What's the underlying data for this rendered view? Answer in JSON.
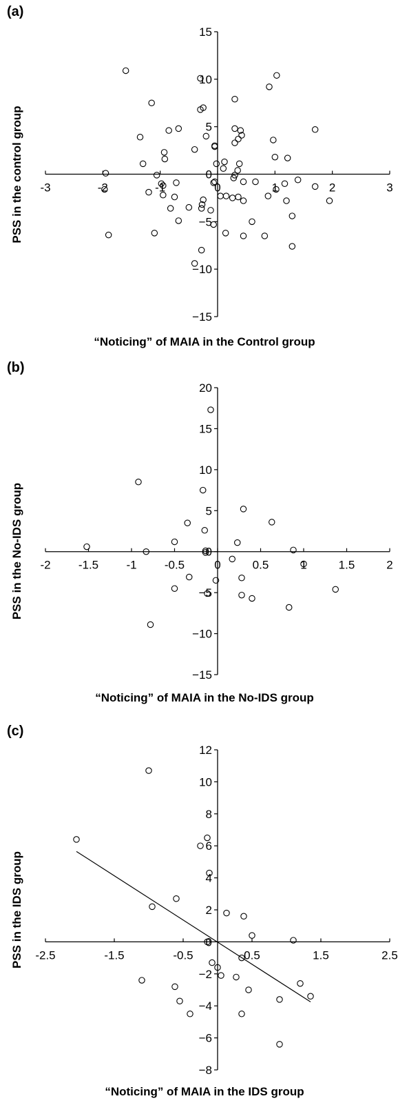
{
  "chart_data": [
    {
      "panel": "(a)",
      "type": "scatter",
      "xlabel": "“Noticing” of MAIA in the Control group",
      "ylabel": "PSS in the control group",
      "xlim": [
        -3,
        3
      ],
      "ylim": [
        -15,
        15
      ],
      "xticks": [
        -3,
        -2,
        -1,
        0,
        1,
        2,
        3
      ],
      "yticks": [
        15,
        10,
        5,
        0,
        -5,
        -10,
        -15
      ],
      "tick_labels_x": [
        "-3",
        "-2",
        "-1",
        "0",
        "1",
        "2",
        "3"
      ],
      "tick_labels_y": [
        "15",
        "10",
        "5",
        "0",
        "−5",
        "−10",
        "−15"
      ],
      "points": [
        [
          -1.6,
          10.9
        ],
        [
          -0.3,
          10.1
        ],
        [
          -1.15,
          7.5
        ],
        [
          -0.25,
          7
        ],
        [
          -0.3,
          6.8
        ],
        [
          0.3,
          7.9
        ],
        [
          0.9,
          9.2
        ],
        [
          1.03,
          10.4
        ],
        [
          1.7,
          4.7
        ],
        [
          -1.35,
          3.9
        ],
        [
          -0.85,
          4.6
        ],
        [
          -0.68,
          4.8
        ],
        [
          -0.2,
          4
        ],
        [
          -0.05,
          2.9
        ],
        [
          -0.05,
          3.0
        ],
        [
          0.3,
          4.8
        ],
        [
          0.4,
          4.6
        ],
        [
          0.42,
          4.1
        ],
        [
          0.36,
          3.7
        ],
        [
          0.3,
          3.3
        ],
        [
          0.97,
          3.6
        ],
        [
          1.0,
          1.8
        ],
        [
          1.22,
          1.7
        ],
        [
          -0.4,
          2.6
        ],
        [
          -0.93,
          2.3
        ],
        [
          -0.92,
          1.6
        ],
        [
          -1.3,
          1.1
        ],
        [
          -0.02,
          1.1
        ],
        [
          0.12,
          1.3
        ],
        [
          0.1,
          0.6
        ],
        [
          0.38,
          1.1
        ],
        [
          0.35,
          0.4
        ],
        [
          0.3,
          -0.1
        ],
        [
          0.28,
          -0.4
        ],
        [
          0.45,
          -0.8
        ],
        [
          -1.06,
          -0.1
        ],
        [
          -0.98,
          -1.0
        ],
        [
          -0.95,
          -1.2
        ],
        [
          -0.72,
          -0.9
        ],
        [
          -1.2,
          -1.9
        ],
        [
          -1.95,
          0.1
        ],
        [
          -1.97,
          -1.6
        ],
        [
          -0.05,
          -0.8
        ],
        [
          -0.07,
          -0.9
        ],
        [
          0.05,
          -2.3
        ],
        [
          0.15,
          -2.3
        ],
        [
          0.26,
          -2.5
        ],
        [
          0.36,
          -2.4
        ],
        [
          0.45,
          -2.8
        ],
        [
          0.66,
          -0.8
        ],
        [
          1.02,
          -1.6
        ],
        [
          1.17,
          -1.0
        ],
        [
          1.4,
          -0.6
        ],
        [
          1.7,
          -1.3
        ],
        [
          0.88,
          -2.3
        ],
        [
          1.2,
          -2.8
        ],
        [
          1.95,
          -2.8
        ],
        [
          -0.95,
          -2.2
        ],
        [
          -0.75,
          -2.4
        ],
        [
          -0.5,
          -3.5
        ],
        [
          -0.28,
          -3.6
        ],
        [
          -0.27,
          -3.2
        ],
        [
          -0.25,
          -2.7
        ],
        [
          -0.12,
          -3.8
        ],
        [
          -0.82,
          -3.6
        ],
        [
          -0.68,
          -4.9
        ],
        [
          -0.07,
          -5.3
        ],
        [
          0.14,
          -6.2
        ],
        [
          0.6,
          -5.0
        ],
        [
          0.82,
          -6.5
        ],
        [
          1.3,
          -4.4
        ],
        [
          0.45,
          -6.5
        ],
        [
          -1.1,
          -6.2
        ],
        [
          -1.9,
          -6.4
        ],
        [
          1.3,
          -7.6
        ],
        [
          -0.28,
          -8.0
        ],
        [
          -0.4,
          -9.4
        ]
      ],
      "fit_line": null
    },
    {
      "panel": "(b)",
      "type": "scatter",
      "xlabel": "“Noticing” of MAIA in the No-IDS group",
      "ylabel": "PSS in the No-IDS group",
      "xlim": [
        -2,
        2
      ],
      "ylim": [
        -15,
        20
      ],
      "xticks": [
        -2,
        -1.5,
        -1,
        -0.5,
        0,
        0.5,
        1,
        1.5,
        2
      ],
      "yticks": [
        20,
        15,
        10,
        5,
        0,
        -5,
        -10,
        -15
      ],
      "tick_labels_x": [
        "-2",
        "-1.5",
        "-1",
        "-0.5",
        "0",
        "0.5",
        "1",
        "1.5",
        "2"
      ],
      "tick_labels_y": [
        "20",
        "15",
        "10",
        "5",
        "0",
        "−5",
        "−10",
        "−15"
      ],
      "points": [
        [
          -0.08,
          17.3
        ],
        [
          -0.92,
          8.5
        ],
        [
          -0.17,
          7.5
        ],
        [
          -0.35,
          3.5
        ],
        [
          0.3,
          5.2
        ],
        [
          0.63,
          3.6
        ],
        [
          0.23,
          1.1
        ],
        [
          -0.5,
          1.2
        ],
        [
          -0.15,
          2.6
        ],
        [
          -0.14,
          0.1
        ],
        [
          -0.14,
          -0.1
        ],
        [
          -1.52,
          0.6
        ],
        [
          -0.83,
          0.0
        ],
        [
          0.17,
          -0.9
        ],
        [
          0.88,
          0.2
        ],
        [
          1.0,
          -1.5
        ],
        [
          -0.33,
          -3.1
        ],
        [
          0.28,
          -3.2
        ],
        [
          -0.02,
          -3.5
        ],
        [
          -0.12,
          -5.1
        ],
        [
          -0.5,
          -4.5
        ],
        [
          0.28,
          -5.3
        ],
        [
          0.4,
          -5.7
        ],
        [
          0.83,
          -6.8
        ],
        [
          1.37,
          -4.6
        ],
        [
          -0.78,
          -8.9
        ]
      ],
      "fit_line": null
    },
    {
      "panel": "(c)",
      "type": "scatter",
      "xlabel": "“Noticing” of MAIA in the IDS group",
      "ylabel": "PSS in the IDS group",
      "xlim": [
        -2.5,
        2.5
      ],
      "ylim": [
        -8,
        12
      ],
      "xticks": [
        -2.5,
        -1.5,
        -0.5,
        0.5,
        1.5,
        2.5
      ],
      "yticks": [
        12,
        10,
        8,
        6,
        4,
        2,
        0,
        -2,
        -4,
        -6,
        -8
      ],
      "tick_labels_x": [
        "-2.5",
        "-1.5",
        "-0.5",
        "0.5",
        "1.5",
        "2.5"
      ],
      "tick_labels_y": [
        "12",
        "10",
        "8",
        "6",
        "4",
        "2",
        "0",
        "−2",
        "−4",
        "−6",
        "−8"
      ],
      "points": [
        [
          -1.0,
          10.7
        ],
        [
          -2.05,
          6.4
        ],
        [
          -0.15,
          6.5
        ],
        [
          -0.25,
          6.0
        ],
        [
          -0.12,
          4.3
        ],
        [
          -0.95,
          2.2
        ],
        [
          -0.6,
          2.7
        ],
        [
          0.13,
          1.8
        ],
        [
          0.38,
          1.6
        ],
        [
          0.5,
          0.4
        ],
        [
          1.1,
          0.1
        ],
        [
          -0.15,
          0.0
        ],
        [
          0.35,
          -1.0
        ],
        [
          -0.08,
          -1.3
        ],
        [
          0.0,
          -1.6
        ],
        [
          0.05,
          -2.1
        ],
        [
          0.27,
          -2.2
        ],
        [
          -1.1,
          -2.4
        ],
        [
          -0.62,
          -2.8
        ],
        [
          -0.55,
          -3.7
        ],
        [
          -0.4,
          -4.5
        ],
        [
          0.45,
          -3.0
        ],
        [
          0.35,
          -4.5
        ],
        [
          0.9,
          -3.6
        ],
        [
          1.2,
          -2.6
        ],
        [
          1.35,
          -3.4
        ],
        [
          0.9,
          -6.4
        ]
      ],
      "fit_line": [
        [
          -2.05,
          5.65
        ],
        [
          1.35,
          -3.75
        ]
      ]
    }
  ]
}
